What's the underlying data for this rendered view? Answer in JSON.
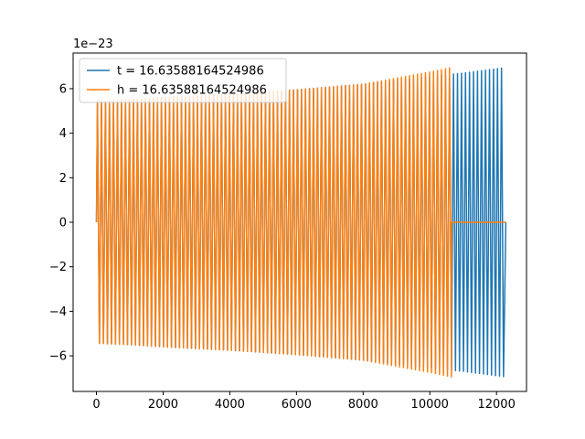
{
  "chart_data": {
    "type": "line",
    "title": "",
    "xlabel": "",
    "ylabel": "",
    "y_scale_label": "1e−23",
    "xlim": [
      -700,
      12900
    ],
    "ylim": [
      -7.6,
      7.6
    ],
    "x_ticks": [
      0,
      2000,
      4000,
      6000,
      8000,
      10000,
      12000
    ],
    "x_tick_labels": [
      "0",
      "2000",
      "4000",
      "6000",
      "8000",
      "10000",
      "12000"
    ],
    "y_ticks": [
      -6,
      -4,
      -2,
      0,
      2,
      4,
      6
    ],
    "y_tick_labels": [
      "−6",
      "−4",
      "−2",
      "0",
      "2",
      "4",
      "6"
    ],
    "grid": false,
    "legend_position": "top-left",
    "series": [
      {
        "name": "t = 16.63588164524986",
        "color": "#1f77b4",
        "x_range": [
          0,
          12280
        ],
        "oscillation_period": 120,
        "envelope": [
          [
            0,
            5.4
          ],
          [
            1000,
            5.5
          ],
          [
            2000,
            5.6
          ],
          [
            4000,
            5.75
          ],
          [
            6000,
            5.95
          ],
          [
            8000,
            6.2
          ],
          [
            10000,
            6.55
          ],
          [
            11000,
            6.7
          ],
          [
            12280,
            6.95
          ]
        ]
      },
      {
        "name": "h = 16.63588164524986",
        "color": "#ff7f0e",
        "x_range": [
          0,
          10650
        ],
        "oscillation_period": 120,
        "envelope": [
          [
            0,
            5.45
          ],
          [
            1000,
            5.5
          ],
          [
            2000,
            5.6
          ],
          [
            4000,
            5.75
          ],
          [
            6000,
            5.95
          ],
          [
            8000,
            6.2
          ],
          [
            10000,
            6.75
          ],
          [
            10650,
            6.95
          ]
        ],
        "tail": {
          "x_range": [
            10650,
            12280
          ],
          "value": 0
        }
      }
    ]
  }
}
